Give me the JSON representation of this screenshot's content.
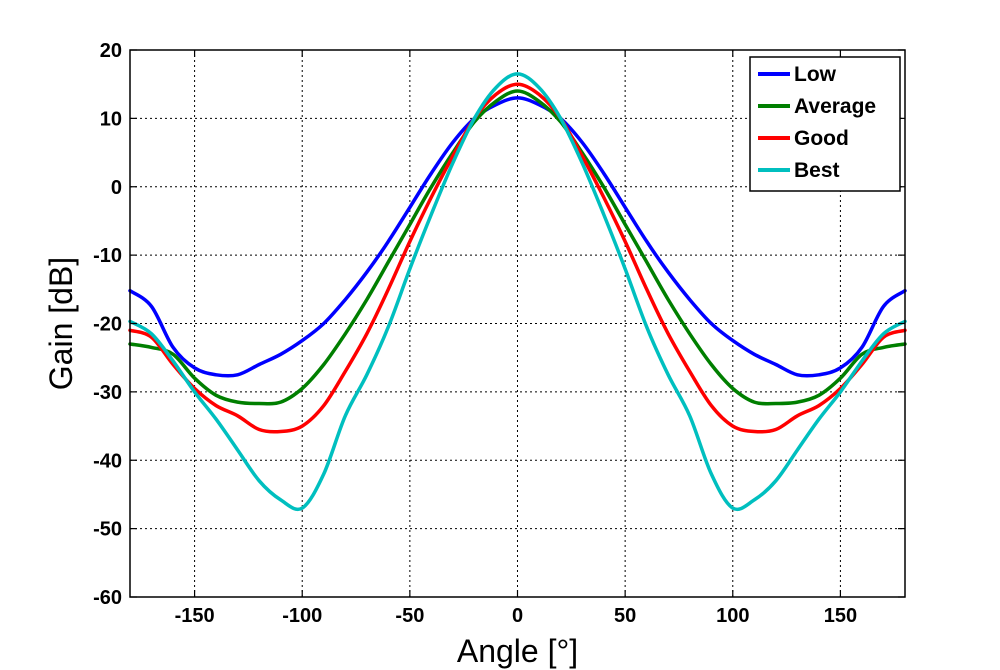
{
  "chart_data": {
    "type": "line",
    "xlabel": "Angle [°]",
    "ylabel": "Gain [dB]",
    "xlim": [
      -180,
      180
    ],
    "ylim": [
      -60,
      20
    ],
    "xticks": [
      -150,
      -100,
      -50,
      0,
      50,
      100,
      150
    ],
    "yticks": [
      -60,
      -50,
      -40,
      -30,
      -20,
      -10,
      0,
      10,
      20
    ],
    "xtick_labels": [
      "-150",
      "-100",
      "-50",
      "0",
      "50",
      "100",
      "150"
    ],
    "ytick_labels": [
      "-60",
      "-50",
      "-40",
      "-30",
      "-20",
      "-10",
      "0",
      "10",
      "20"
    ],
    "grid": true,
    "legend_position": "top-right",
    "x": [
      -180,
      -170,
      -160,
      -150,
      -140,
      -130,
      -120,
      -110,
      -100,
      -90,
      -80,
      -70,
      -60,
      -50,
      -40,
      -30,
      -20,
      -10,
      0,
      10,
      20,
      30,
      40,
      50,
      60,
      70,
      80,
      90,
      100,
      110,
      120,
      130,
      140,
      150,
      160,
      170,
      180
    ],
    "series": [
      {
        "name": "Low",
        "color": "#0000ff",
        "values": [
          -15.2,
          -17.5,
          -23.5,
          -26.5,
          -27.5,
          -27.5,
          -26,
          -24.5,
          -22.5,
          -20,
          -16.5,
          -12.5,
          -8,
          -3,
          2,
          6.5,
          10,
          12,
          13,
          12,
          10,
          6.5,
          2,
          -3,
          -8,
          -12.5,
          -16.5,
          -20,
          -22.5,
          -24.5,
          -26,
          -27.5,
          -27.5,
          -26.5,
          -23.5,
          -17.5,
          -15.2
        ]
      },
      {
        "name": "Average",
        "color": "#007f00",
        "values": [
          -23,
          -23.5,
          -24.5,
          -28,
          -30.5,
          -31.5,
          -31.7,
          -31.5,
          -29.5,
          -26,
          -21.5,
          -16.5,
          -11,
          -5.5,
          0,
          5,
          9.5,
          12.5,
          14,
          12.5,
          9.5,
          5,
          0,
          -5.5,
          -11,
          -16.5,
          -21.5,
          -26,
          -29.5,
          -31.5,
          -31.7,
          -31.5,
          -30.5,
          -28,
          -24.5,
          -23.5,
          -23
        ]
      },
      {
        "name": "Good",
        "color": "#ff0000",
        "values": [
          -21,
          -22,
          -26,
          -29.5,
          -32,
          -33.5,
          -35.5,
          -35.8,
          -35,
          -32,
          -27,
          -21.5,
          -15,
          -8,
          -1.5,
          4.5,
          10,
          13.5,
          15,
          13.5,
          10,
          4.5,
          -1.5,
          -8,
          -15,
          -21.5,
          -27,
          -32,
          -35,
          -35.8,
          -35.5,
          -33.5,
          -32,
          -29.5,
          -26,
          -22,
          -21
        ]
      },
      {
        "name": "Best",
        "color": "#00bfbf",
        "values": [
          -19.7,
          -21.5,
          -25.5,
          -30,
          -34,
          -38.5,
          -43,
          -45.8,
          -47,
          -42,
          -33.5,
          -27.5,
          -20.5,
          -12,
          -4,
          3.5,
          10,
          14.5,
          16.5,
          14.5,
          10,
          3.5,
          -4,
          -12,
          -20.5,
          -27.5,
          -33.5,
          -42,
          -47,
          -45.8,
          -43,
          -38.5,
          -34,
          -30,
          -25.5,
          -21.5,
          -19.7
        ]
      }
    ]
  }
}
